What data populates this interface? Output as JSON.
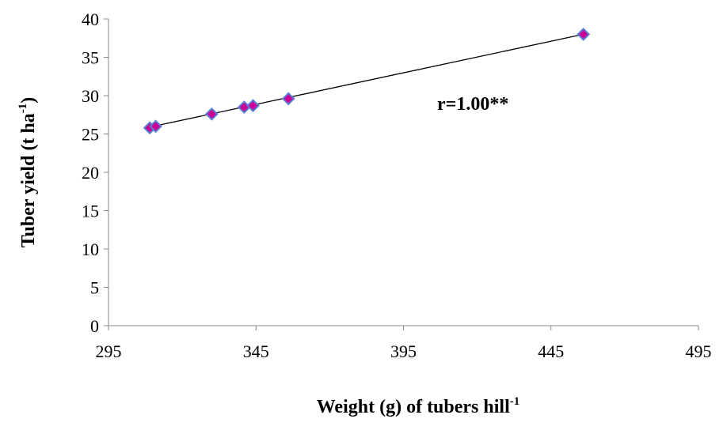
{
  "chart_data": {
    "type": "scatter",
    "title": "",
    "xlabel": "Weight (g) of tubers hill",
    "xlabel_sup": "-1",
    "ylabel": "Tuber yield (t ha",
    "ylabel_sup": "-1",
    "ylabel_close": ")",
    "xlim": [
      295,
      495
    ],
    "ylim": [
      0,
      40
    ],
    "xticks": [
      295,
      345,
      395,
      445,
      495
    ],
    "yticks": [
      0,
      5,
      10,
      15,
      20,
      25,
      30,
      35,
      40
    ],
    "grid": false,
    "legend": "none",
    "series": [
      {
        "points": [
          {
            "x": 309,
            "y": 25.8
          },
          {
            "x": 311,
            "y": 26.0
          },
          {
            "x": 330,
            "y": 27.6
          },
          {
            "x": 341,
            "y": 28.5
          },
          {
            "x": 344,
            "y": 28.7
          },
          {
            "x": 356,
            "y": 29.6
          },
          {
            "x": 456,
            "y": 38.0
          }
        ],
        "marker_fill": "#cc0099",
        "marker_stroke": "#5b7fd1"
      }
    ],
    "trendline": {
      "x": [
        309,
        456
      ],
      "y": [
        25.9,
        38.0
      ],
      "color": "#000000"
    },
    "annotation": "r=1.00**"
  }
}
